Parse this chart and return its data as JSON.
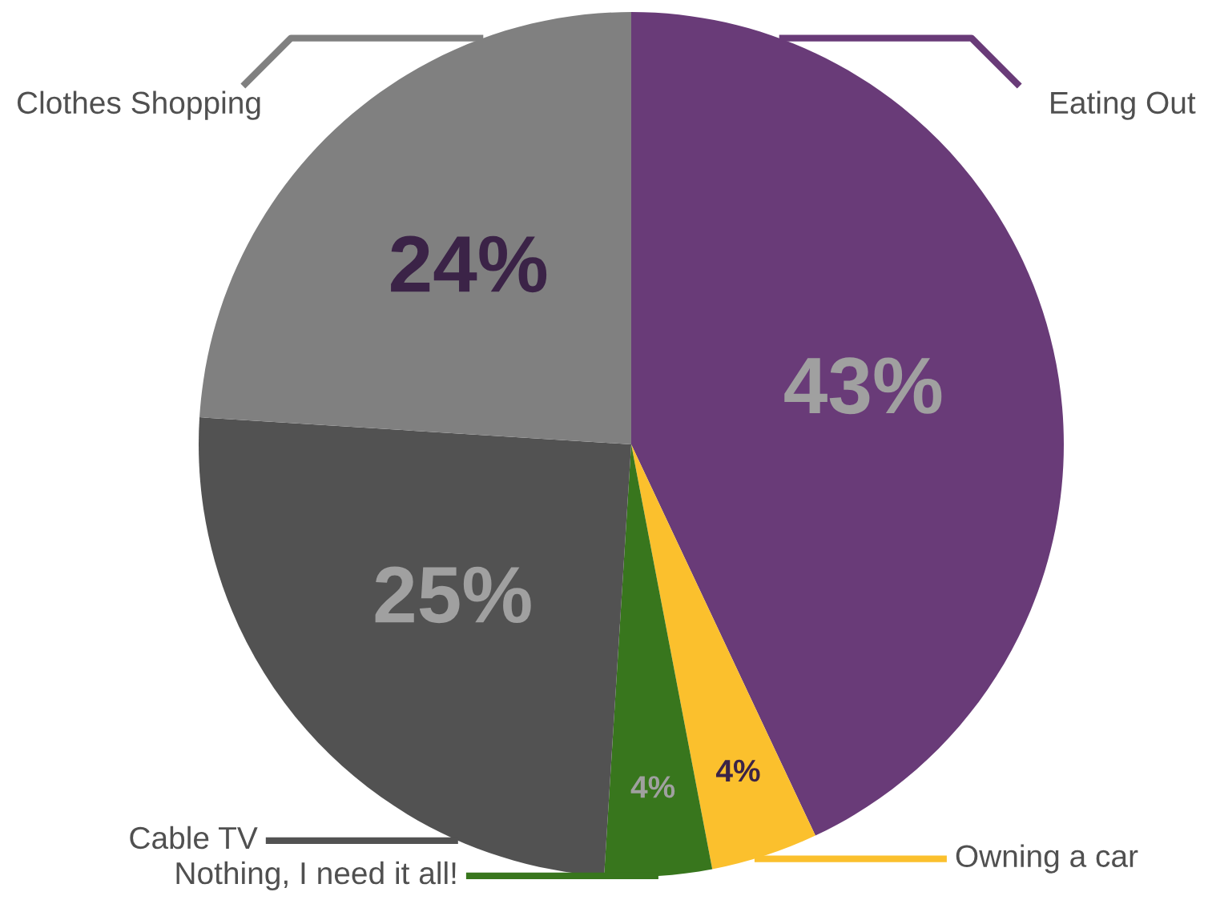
{
  "chart_data": {
    "type": "pie",
    "categories": [
      "Eating Out",
      "Owning a car",
      "Nothing, I need it all!",
      "Cable TV",
      "Clothes Shopping"
    ],
    "values": [
      43,
      4,
      4,
      25,
      24
    ],
    "colors": [
      "#693b78",
      "#fbc02d",
      "#38761d",
      "#525252",
      "#808080"
    ],
    "value_labels": [
      "43%",
      "4%",
      "4%",
      "25%",
      "24%"
    ],
    "legend": false
  }
}
